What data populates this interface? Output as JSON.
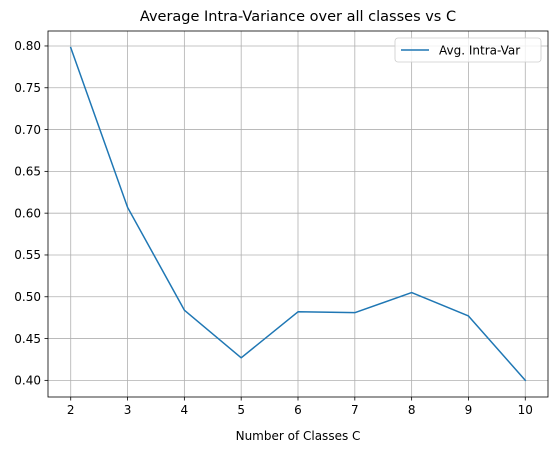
{
  "chart_data": {
    "type": "line",
    "title": "Average Intra-Variance over all classes vs C",
    "xlabel": "Number of Classes C",
    "ylabel": "",
    "x": [
      2,
      3,
      4,
      5,
      6,
      7,
      8,
      9,
      10
    ],
    "series": [
      {
        "name": "Avg. Intra-Var",
        "color": "#1f77b4",
        "values": [
          0.798,
          0.607,
          0.484,
          0.427,
          0.482,
          0.481,
          0.505,
          0.477,
          0.4
        ]
      }
    ],
    "xlim": [
      1.6,
      10.4
    ],
    "ylim": [
      0.3801,
      0.8179
    ],
    "xticks": [
      2,
      3,
      4,
      5,
      6,
      7,
      8,
      9,
      10
    ],
    "xtick_labels": [
      "2",
      "3",
      "4",
      "5",
      "6",
      "7",
      "8",
      "9",
      "10"
    ],
    "yticks": [
      0.4,
      0.45,
      0.5,
      0.55,
      0.6,
      0.65,
      0.7,
      0.75,
      0.8
    ],
    "ytick_labels": [
      "0.40",
      "0.45",
      "0.50",
      "0.55",
      "0.60",
      "0.65",
      "0.70",
      "0.75",
      "0.80"
    ],
    "grid": true,
    "legend_position": "top-right"
  }
}
